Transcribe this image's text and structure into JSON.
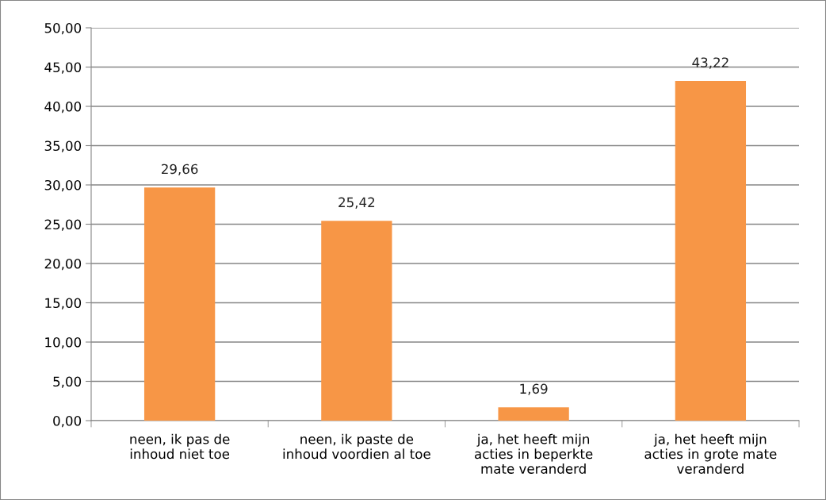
{
  "chart_data": {
    "type": "bar",
    "categories": [
      "neen, ik pas de\ninhoud niet toe",
      "neen, ik paste de\ninhoud voordien al toe",
      "ja, het heeft mijn\nacties in beperkte\nmate veranderd",
      "ja, het heeft mijn\nacties in grote mate\nveranderd"
    ],
    "values": [
      29.66,
      25.42,
      1.69,
      43.22
    ],
    "value_labels": [
      "29,66",
      "25,42",
      "1,69",
      "43,22"
    ],
    "color": "#f79646",
    "ylim": [
      0,
      50
    ],
    "yticks": [
      {
        "value": 0,
        "label": "0,00"
      },
      {
        "value": 5,
        "label": "5,00"
      },
      {
        "value": 10,
        "label": "10,00"
      },
      {
        "value": 15,
        "label": "15,00"
      },
      {
        "value": 20,
        "label": "20,00"
      },
      {
        "value": 25,
        "label": "25,00"
      },
      {
        "value": 30,
        "label": "30,00"
      },
      {
        "value": 35,
        "label": "35,00"
      },
      {
        "value": 40,
        "label": "40,00"
      },
      {
        "value": 45,
        "label": "45,00"
      },
      {
        "value": 50,
        "label": "50,00"
      }
    ],
    "grid": "y",
    "legend": false
  }
}
